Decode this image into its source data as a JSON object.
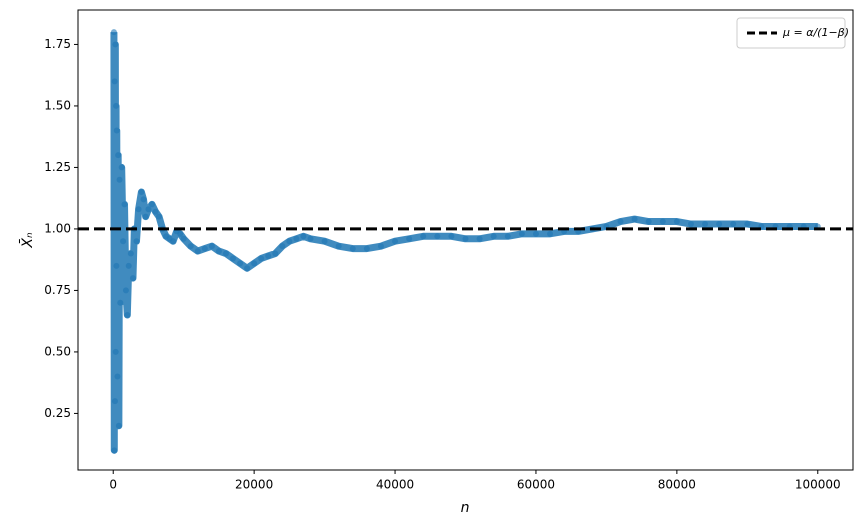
{
  "chart_data": {
    "type": "scatter",
    "xlabel": "n",
    "ylabel": "X̄ₙ",
    "x": [
      100,
      150,
      200,
      250,
      300,
      350,
      400,
      450,
      500,
      600,
      700,
      800,
      900,
      1000,
      1200,
      1400,
      1600,
      1800,
      2000,
      2200,
      2500,
      2800,
      3000,
      3300,
      3600,
      4000,
      4300,
      4600,
      5000,
      5500,
      6000,
      6500,
      7000,
      7500,
      8000,
      8500,
      9000,
      9500,
      10000,
      11000,
      12000,
      13000,
      14000,
      15000,
      16000,
      17000,
      18000,
      19000,
      20000,
      21000,
      22000,
      23000,
      24000,
      25000,
      26000,
      27000,
      28000,
      30000,
      32000,
      34000,
      36000,
      38000,
      40000,
      42000,
      44000,
      46000,
      48000,
      50000,
      52000,
      54000,
      56000,
      58000,
      60000,
      62000,
      64000,
      66000,
      68000,
      70000,
      72000,
      74000,
      76000,
      78000,
      80000,
      82000,
      84000,
      86000,
      88000,
      90000,
      92000,
      94000,
      96000,
      98000,
      100000
    ],
    "series": [
      {
        "color": "#1f77b4",
        "values": [
          1.8,
          0.1,
          1.6,
          0.3,
          1.75,
          0.5,
          1.5,
          0.85,
          1.4,
          0.4,
          1.3,
          0.2,
          1.2,
          0.7,
          1.25,
          0.95,
          1.1,
          0.75,
          0.65,
          0.85,
          0.9,
          0.8,
          1.0,
          0.95,
          1.08,
          1.15,
          1.12,
          1.05,
          1.08,
          1.1,
          1.07,
          1.05,
          1.0,
          0.97,
          0.96,
          0.95,
          0.99,
          0.98,
          0.96,
          0.93,
          0.91,
          0.92,
          0.93,
          0.91,
          0.9,
          0.88,
          0.86,
          0.84,
          0.86,
          0.88,
          0.89,
          0.9,
          0.93,
          0.95,
          0.96,
          0.97,
          0.96,
          0.95,
          0.93,
          0.92,
          0.92,
          0.93,
          0.95,
          0.96,
          0.97,
          0.97,
          0.97,
          0.96,
          0.96,
          0.97,
          0.97,
          0.98,
          0.98,
          0.98,
          0.99,
          0.99,
          1.0,
          1.01,
          1.03,
          1.04,
          1.03,
          1.03,
          1.03,
          1.02,
          1.02,
          1.02,
          1.02,
          1.02,
          1.01,
          1.01,
          1.01,
          1.01,
          1.01
        ]
      }
    ],
    "hline": {
      "value": 1,
      "label": "μ = α/(1−β)",
      "color": "#000000"
    },
    "legend": "upper right",
    "xlim": [
      -5000,
      105000
    ],
    "xticks": [
      0,
      20000,
      40000,
      60000,
      80000,
      100000
    ],
    "ylim": [
      0.02,
      1.89
    ],
    "yticks": [
      0.25,
      {
        "value": 0.5,
        "label": "0.50"
      },
      0.75,
      {
        "value": 1,
        "label": "1.00"
      },
      1.25,
      {
        "value": 1.5,
        "label": "1.50"
      },
      1.75
    ]
  }
}
